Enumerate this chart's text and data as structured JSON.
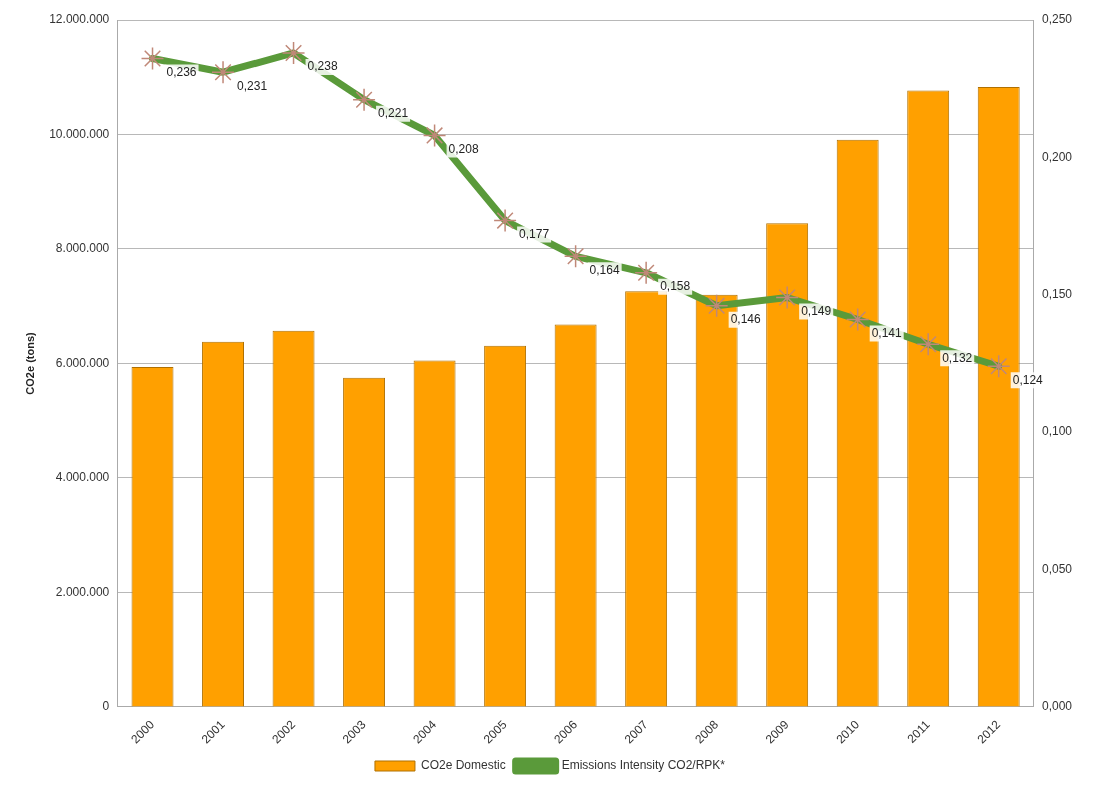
{
  "chart_data": {
    "type": "bar",
    "ylabel": "CO2e (tons)",
    "categories": [
      "2000",
      "2001",
      "2002",
      "2003",
      "2004",
      "2005",
      "2006",
      "2007",
      "2008",
      "2009",
      "2010",
      "2011",
      "2012"
    ],
    "series": [
      {
        "name": "CO2e Domestic",
        "color": "#ffa000",
        "values": [
          5940000,
          6380000,
          6570000,
          5750000,
          6050000,
          6310000,
          6680000,
          7260000,
          7200000,
          8450000,
          9910000,
          10770000,
          10830000
        ]
      },
      {
        "name": "Emissions Intensity CO2/RPK*",
        "type": "line",
        "axis": "y2",
        "color": "#5a9a3a",
        "marker": "cross",
        "values": [
          0.236,
          0.231,
          0.238,
          0.221,
          0.208,
          0.177,
          0.164,
          0.158,
          0.146,
          0.149,
          0.141,
          0.132,
          0.124
        ],
        "value_labels": [
          "0,236",
          "0,231",
          "0,238",
          "0,221",
          "0,208",
          "0,177",
          "0,164",
          "0,158",
          "0,146",
          "0,149",
          "0,141",
          "0,132",
          "0,124"
        ]
      }
    ],
    "ylim": [
      0,
      12000000
    ],
    "yticks": [
      {
        "value": 0,
        "label": "0"
      },
      {
        "value": 2000000,
        "label": "2.000.000"
      },
      {
        "value": 4000000,
        "label": "4.000.000"
      },
      {
        "value": 6000000,
        "label": "6.000.000"
      },
      {
        "value": 8000000,
        "label": "8.000.000"
      },
      {
        "value": 10000000,
        "label": "10.000.000"
      },
      {
        "value": 12000000,
        "label": "12.000.000"
      }
    ],
    "y2lim": [
      0,
      0.25
    ],
    "y2ticks": [
      {
        "value": 0,
        "label": "0,000"
      },
      {
        "value": 0.05,
        "label": "0,050"
      },
      {
        "value": 0.1,
        "label": "0,100"
      },
      {
        "value": 0.15,
        "label": "0,150"
      },
      {
        "value": 0.2,
        "label": "0,200"
      },
      {
        "value": 0.25,
        "label": "0,250"
      }
    ],
    "grid": "y",
    "legend": "bottom"
  }
}
